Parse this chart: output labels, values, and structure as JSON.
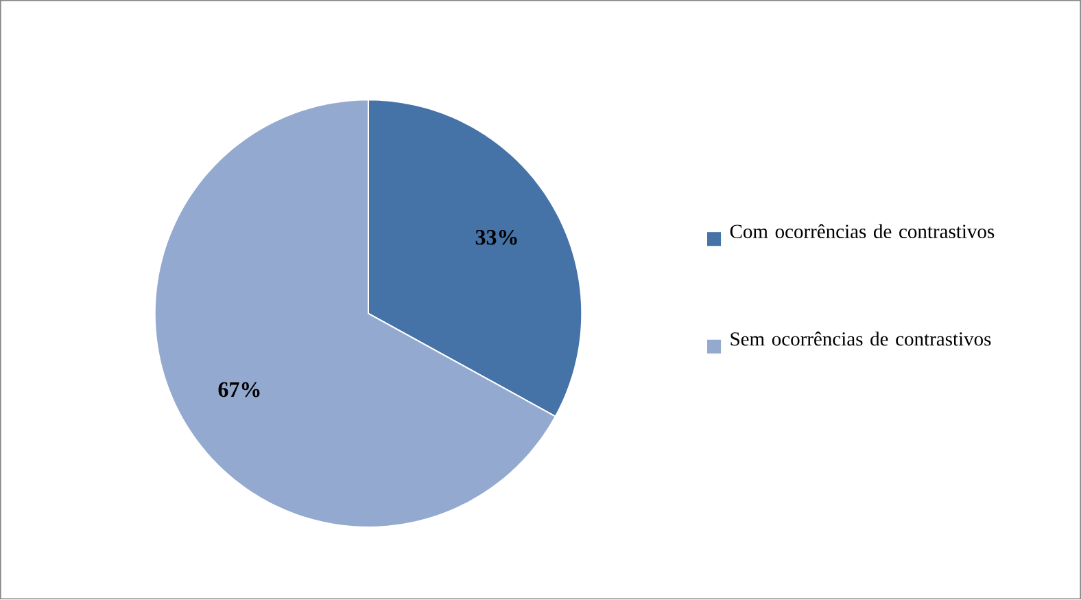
{
  "chart_data": {
    "type": "pie",
    "categories": [
      "Com ocorrências de contrastivos",
      "Sem ocorrências de contrastivos"
    ],
    "values": [
      33,
      67
    ],
    "value_labels": [
      "33%",
      "67%"
    ],
    "colors": [
      "#4572a7",
      "#93a9cf"
    ],
    "legend": "right"
  }
}
